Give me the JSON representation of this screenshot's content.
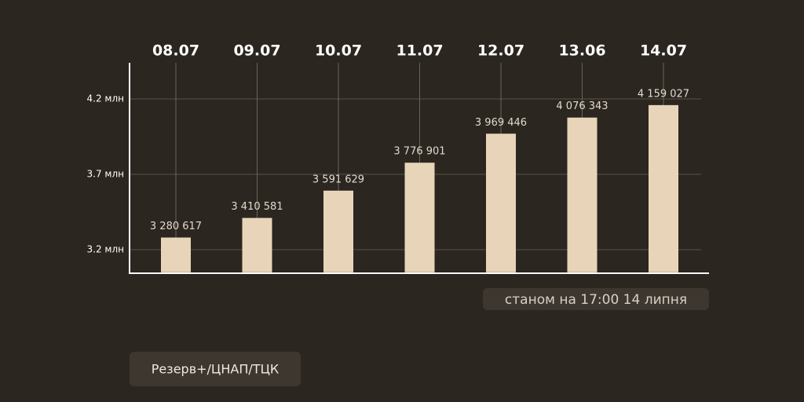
{
  "chart_data": {
    "type": "bar",
    "categories": [
      "08.07",
      "09.07",
      "10.07",
      "11.07",
      "12.07",
      "13.06",
      "14.07"
    ],
    "values": [
      3280617,
      3410581,
      3591629,
      3776901,
      3969446,
      4076343,
      4159027
    ],
    "value_labels": [
      "3 280 617",
      "3 410 581",
      "3 591 629",
      "3 776 901",
      "3 969 446",
      "4 076 343",
      "4 159 027"
    ],
    "color": "#e8d5b9",
    "ylim": [
      3050000,
      4400000
    ],
    "yticks": [
      {
        "value": 3200000,
        "label": "3.2 млн"
      },
      {
        "value": 3700000,
        "label": "3.7 млн"
      },
      {
        "value": 4200000,
        "label": "4.2 млн"
      }
    ],
    "grid": true,
    "note": "станом на 17:00 14 липня",
    "source": "Резерв+/ЦНАП/ТЦК"
  }
}
